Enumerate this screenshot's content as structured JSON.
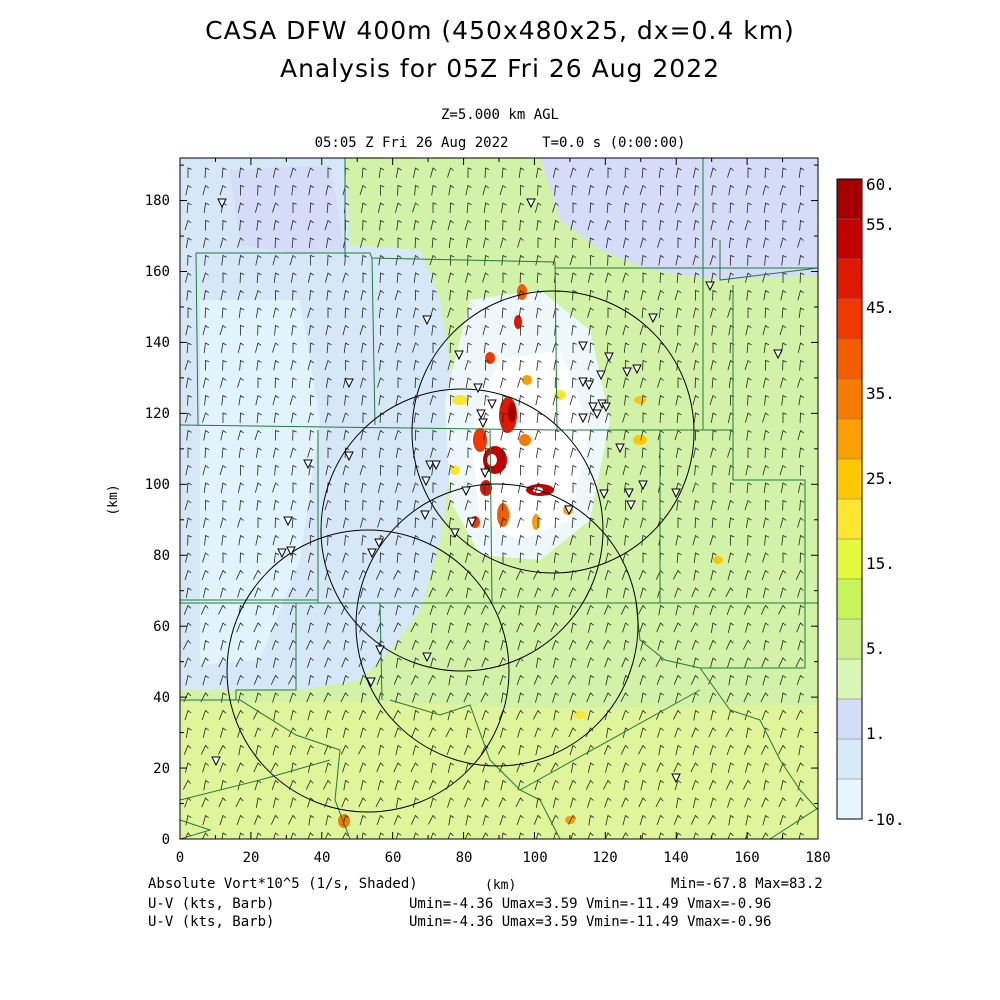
{
  "header": {
    "title_line1": "CASA DFW 400m (450x480x25, dx=0.4 km)",
    "title_line2": "Analysis for 05Z Fri 26 Aug 2022",
    "level": "Z=5.000 km AGL",
    "time": "05:05 Z Fri 26 Aug 2022    T=0.0 s (0:00:00)"
  },
  "axes": {
    "x_ticks": [
      "0",
      "20",
      "40",
      "60",
      "80",
      "100",
      "120",
      "140",
      "160",
      "180"
    ],
    "y_ticks": [
      "0",
      "20",
      "40",
      "60",
      "80",
      "100",
      "120",
      "140",
      "160",
      "180"
    ],
    "x_label": "(km)",
    "y_label": "(km)",
    "x_range": [
      0,
      180
    ],
    "y_range": [
      0,
      192
    ]
  },
  "colorbar": {
    "labels": [
      "60.",
      "55.",
      "45.",
      "35.",
      "25.",
      "15.",
      "5.",
      "1.",
      "-10."
    ],
    "colors": [
      "#a40000",
      "#c40000",
      "#dd1a00",
      "#f03800",
      "#f45c00",
      "#f57c00",
      "#f9a000",
      "#fbc800",
      "#fce630",
      "#e4f83c",
      "#c8f45c",
      "#cef08a",
      "#d8f6b6",
      "#d4dcf8",
      "#d6ebfa",
      "#e6f6fc"
    ]
  },
  "footer": {
    "field": "Absolute Vort*10^5 (1/s, Shaded)",
    "x_unit": "(km)",
    "minmax": "Min=-67.8 Max=83.2",
    "uv_line1_label": "U-V (kts, Barb)",
    "uv_line1_stats": "Umin=-4.36 Umax=3.59 Vmin=-11.49 Vmax=-0.96",
    "uv_line2_label": "U-V (kts, Barb)",
    "uv_line2_stats": "Umin=-4.36 Umax=3.59 Vmin=-11.49 Vmax=-0.96"
  }
}
